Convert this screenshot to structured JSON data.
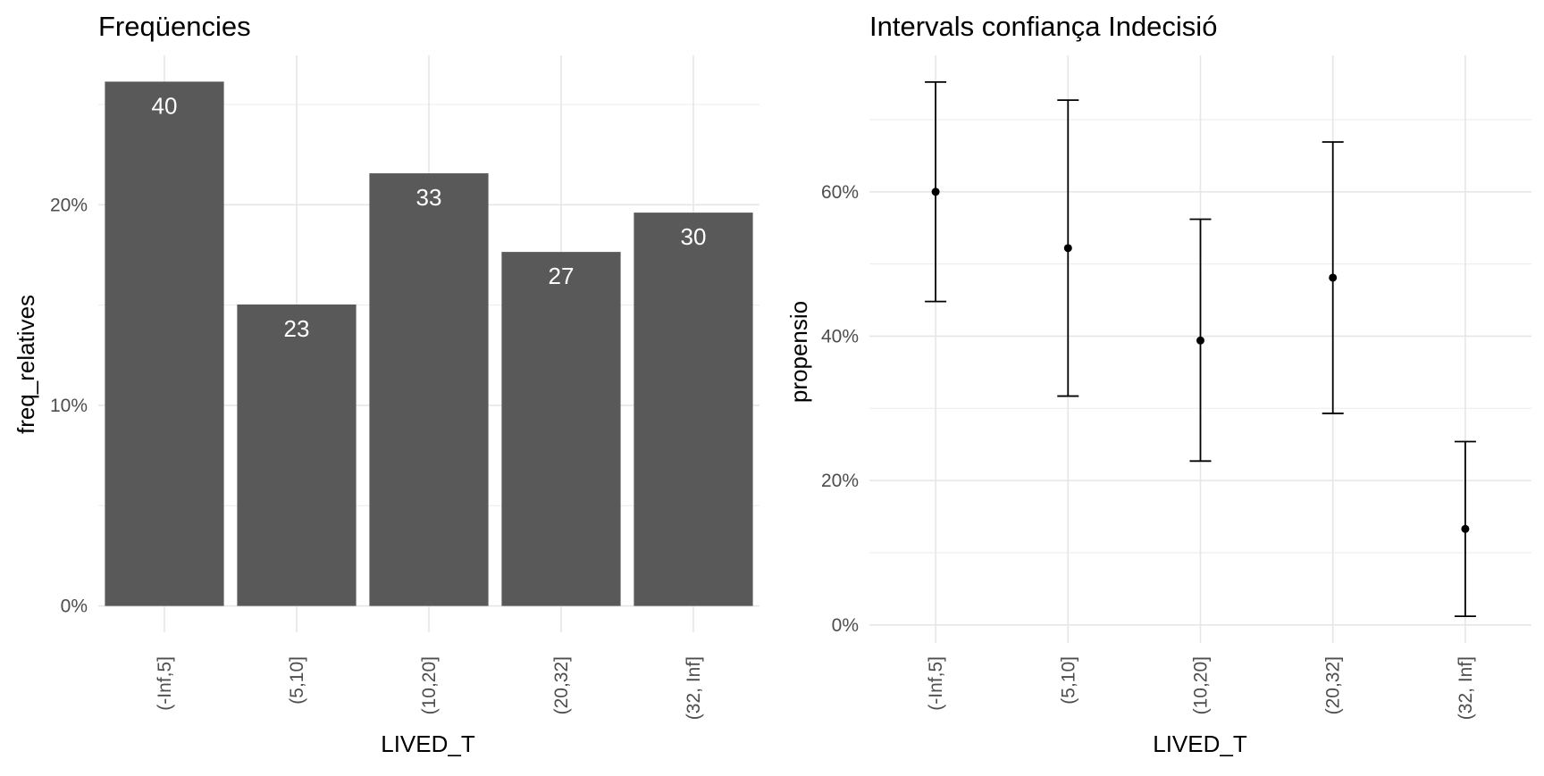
{
  "chart_data": [
    {
      "type": "bar",
      "title": "Freqüencies",
      "xlabel": "LIVED_T",
      "ylabel": "freq_relatives",
      "categories": [
        "(-Inf,5]",
        "(5,10]",
        "(10,20]",
        "(20,32]",
        "(32, Inf]"
      ],
      "values": [
        0.2614,
        0.1503,
        0.2157,
        0.1765,
        0.1961
      ],
      "counts": [
        40,
        23,
        33,
        27,
        30
      ],
      "y_ticks": [
        0,
        0.1,
        0.2
      ],
      "y_tick_labels": [
        "0%",
        "10%",
        "20%"
      ],
      "ylim": [
        -0.0131,
        0.2745
      ],
      "grid": true,
      "bar_color": "#595959",
      "label_color": "#ffffff"
    },
    {
      "type": "errorbar",
      "title": "Intervals confiança Indecisió",
      "xlabel": "LIVED_T",
      "ylabel": "propensio",
      "categories": [
        "(-Inf,5]",
        "(5,10]",
        "(10,20]",
        "(20,32]",
        "(32, Inf]"
      ],
      "values": [
        0.6,
        0.522,
        0.394,
        0.481,
        0.133
      ],
      "lower": [
        0.448,
        0.317,
        0.227,
        0.293,
        0.012
      ],
      "upper": [
        0.752,
        0.727,
        0.562,
        0.669,
        0.254
      ],
      "y_ticks": [
        0,
        0.2,
        0.4,
        0.6
      ],
      "y_tick_labels": [
        "0%",
        "20%",
        "40%",
        "60%"
      ],
      "ylim": [
        -0.025,
        0.789
      ],
      "grid": true,
      "point_color": "#000000"
    }
  ]
}
